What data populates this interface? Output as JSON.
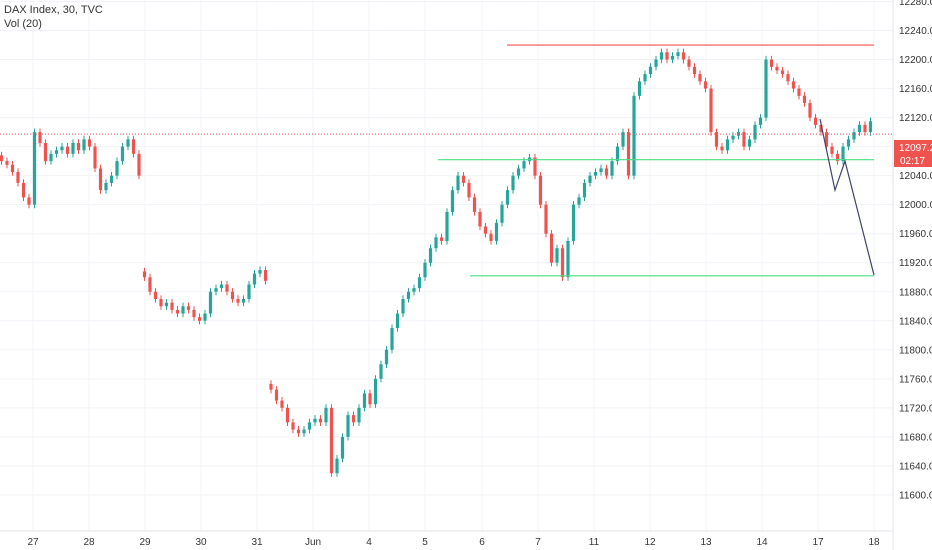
{
  "header": {
    "title": "DAX Index, 30, TVC",
    "indicator": "Vol (20)"
  },
  "badges": {
    "price": "12097.2",
    "countdown": "02:17"
  },
  "colors": {
    "up": "#26a69a",
    "down": "#ef5350",
    "grid": "#f0f3f7",
    "resistance": "#ef5350",
    "support": "#4ade80",
    "projection": "#3f4468",
    "price_line": "#ef5350"
  },
  "chart_data": {
    "type": "candlestick",
    "title": "DAX Index, 30, TVC",
    "ylim": [
      11560,
      12300
    ],
    "y_ticks": [
      11600,
      11640,
      11680,
      11720,
      11760,
      11800,
      11840,
      11880,
      11920,
      11960,
      12000,
      12040,
      12080,
      12120,
      12160,
      12200,
      12240,
      12280
    ],
    "y_tick_labels": [
      "11600.0",
      "11640.0",
      "11680.0",
      "11720.0",
      "11760.0",
      "11800.0",
      "11840.0",
      "11880.0",
      "11920.0",
      "11960.0",
      "12000.0",
      "12040.0",
      "12080.0",
      "12120.0",
      "12160.0",
      "12200.0",
      "12240.0",
      "12280.0"
    ],
    "x_tick_labels": [
      "27",
      "28",
      "29",
      "30",
      "31",
      "Jun",
      "4",
      "5",
      "6",
      "7",
      "11",
      "12",
      "13",
      "14",
      "17",
      "18"
    ],
    "grid": true,
    "current_price": 12097.2,
    "segments": [
      {
        "start_index": 0,
        "closes": [
          12060,
          12055,
          12045,
          12030,
          12010,
          12000,
          12100,
          12085,
          12060,
          12070,
          12075,
          12080,
          12070,
          12085,
          12075,
          12090,
          12080,
          12050,
          12020,
          12030,
          12040,
          12060,
          12080,
          12090,
          12070,
          12040
        ]
      },
      {
        "start_index": 26,
        "closes": [
          11900,
          11880,
          11870,
          11860,
          11865,
          11855,
          11850,
          11860,
          11855,
          11845,
          11840,
          11850,
          11880,
          11885,
          11890,
          11880,
          11870,
          11865,
          11870,
          11890,
          11905,
          11910,
          11895
        ]
      },
      {
        "start_index": 49,
        "closes": [
          11745,
          11730,
          11720,
          11700,
          11690,
          11685,
          11690,
          11700,
          11705,
          11700,
          11720,
          11630,
          11650,
          11680,
          11710,
          11700,
          11720,
          11740,
          11725,
          11760,
          11780,
          11800,
          11830,
          11850,
          11870,
          11880,
          11885,
          11900,
          11920,
          11940,
          11955,
          11950,
          11990,
          12020,
          12040,
          12030,
          12010,
          11990,
          11970,
          11960,
          11950,
          11975,
          12000,
          12020,
          12040,
          12050,
          12060,
          12065,
          12040,
          12000,
          11960,
          11920,
          11940,
          11900,
          11950,
          12000,
          12010,
          12030,
          12040,
          12045,
          12050,
          12040,
          12060,
          12080,
          12100,
          12040,
          12150,
          12170,
          12180,
          12190,
          12200,
          12210,
          12200,
          12205,
          12210,
          12200,
          12190,
          12180,
          12170,
          12160,
          12100,
          12080,
          12075,
          12090,
          12095,
          12100,
          12080,
          12090,
          12110,
          12120,
          12200,
          12190,
          12185,
          12180,
          12170,
          12160,
          12150,
          12140,
          12120,
          12110,
          12100,
          12080,
          12070,
          12060,
          12080,
          12090,
          12100,
          12110,
          12100,
          12115
        ]
      }
    ],
    "annotations": {
      "resistance_level": 12220,
      "upper_support_level": 12062,
      "lower_support_level": 11902,
      "projection_path": [
        12118,
        12020,
        12060,
        11903
      ]
    }
  }
}
